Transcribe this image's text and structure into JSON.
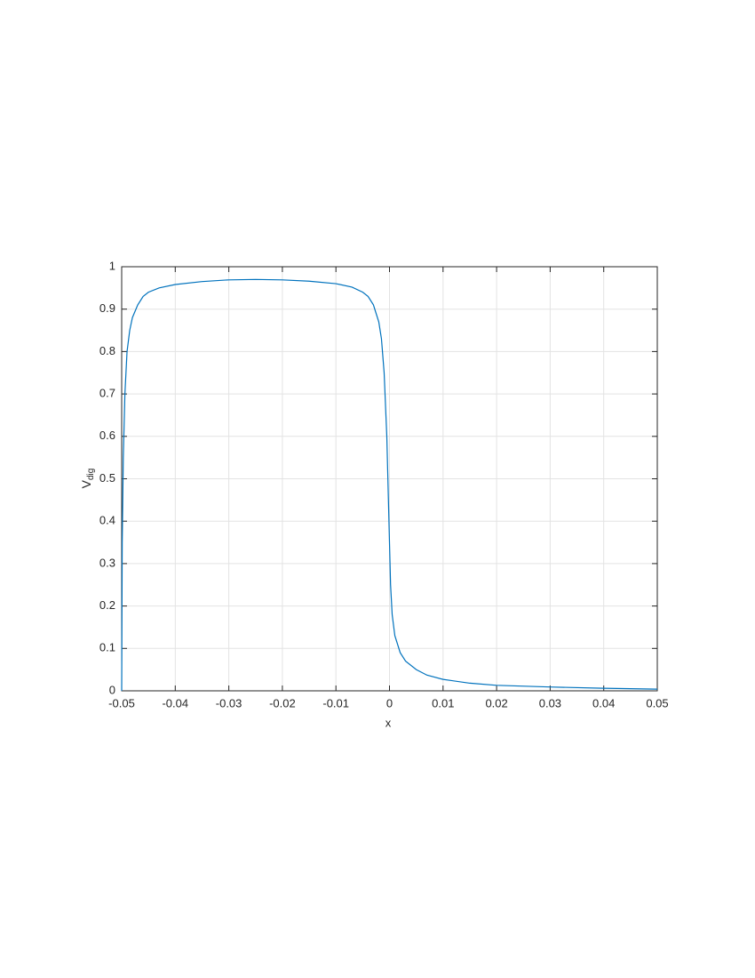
{
  "chart_data": {
    "type": "line",
    "x_label": "x",
    "y_label": {
      "text": "V",
      "subscript": "dig"
    },
    "x": [
      -0.05,
      -0.0499,
      -0.0497,
      -0.0494,
      -0.049,
      -0.0485,
      -0.048,
      -0.047,
      -0.046,
      -0.045,
      -0.043,
      -0.04,
      -0.035,
      -0.03,
      -0.025,
      -0.02,
      -0.015,
      -0.01,
      -0.007,
      -0.005,
      -0.004,
      -0.003,
      -0.002,
      -0.0015,
      -0.001,
      -0.0005,
      -0.0002,
      0,
      0.0002,
      0.0005,
      0.001,
      0.002,
      0.003,
      0.005,
      0.007,
      0.01,
      0.015,
      0.02,
      0.03,
      0.04,
      0.05
    ],
    "values": [
      0,
      0.35,
      0.55,
      0.7,
      0.8,
      0.85,
      0.88,
      0.91,
      0.93,
      0.94,
      0.95,
      0.958,
      0.965,
      0.969,
      0.97,
      0.969,
      0.966,
      0.96,
      0.952,
      0.94,
      0.93,
      0.91,
      0.87,
      0.83,
      0.75,
      0.6,
      0.45,
      0.35,
      0.25,
      0.18,
      0.13,
      0.09,
      0.07,
      0.05,
      0.037,
      0.027,
      0.018,
      0.013,
      0.009,
      0.006,
      0.004
    ],
    "color": "#0072bd",
    "xlim": [
      -0.05,
      0.05
    ],
    "xticks": [
      -0.05,
      -0.04,
      -0.03,
      -0.02,
      -0.01,
      0,
      0.01,
      0.02,
      0.03,
      0.04,
      0.05
    ],
    "ylim": [
      0,
      1
    ],
    "yticks": [
      0,
      0.1,
      0.2,
      0.3,
      0.4,
      0.5,
      0.6,
      0.7,
      0.8,
      0.9,
      1
    ],
    "grid": true
  }
}
